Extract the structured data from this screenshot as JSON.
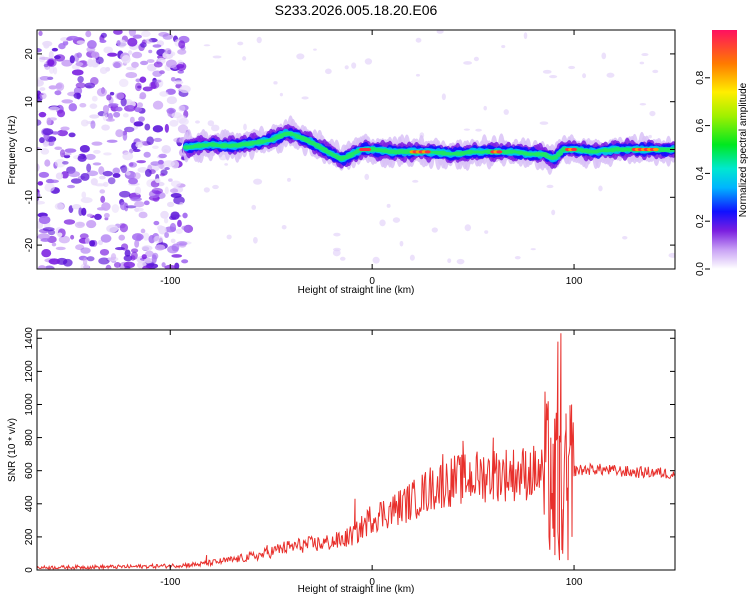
{
  "title": "S233.2026.005.18.20.E06",
  "colors": {
    "snr_line": "#e8302c",
    "axis": "#000000",
    "dots": "#7b1fe0"
  },
  "chart_data": [
    {
      "type": "heatmap",
      "name": "spectrogram",
      "xlabel": "Height of straight line (km)",
      "ylabel": "Frequency (Hz)",
      "xlim": [
        -166,
        150
      ],
      "ylim": [
        -25,
        25
      ],
      "xticks": [
        -100,
        0,
        100
      ],
      "xtick_labels": [
        "-100",
        "0",
        "100"
      ],
      "yticks": [
        -20,
        -10,
        0,
        10,
        20
      ],
      "ytick_labels": [
        "-20",
        "-10",
        "0",
        "10",
        "20"
      ],
      "noise_region_x": [
        -166,
        -95
      ],
      "signal_start_x": -92,
      "ridge": {
        "x": [
          -92,
          -80,
          -70,
          -60,
          -50,
          -42,
          -35,
          -28,
          -20,
          -15,
          -10,
          -5,
          0,
          10,
          20,
          30,
          40,
          50,
          60,
          70,
          78,
          85,
          90,
          95,
          100,
          110,
          120,
          130,
          140,
          150
        ],
        "y": [
          0.5,
          1.0,
          0.8,
          1.2,
          2.0,
          3.5,
          2.5,
          1.0,
          -1.0,
          -2.0,
          -1.0,
          0.0,
          0.0,
          -0.5,
          -0.5,
          -0.5,
          -1.0,
          -0.5,
          -0.5,
          -0.5,
          -1.0,
          -1.0,
          -2.0,
          0.0,
          0.0,
          -0.5,
          0.0,
          0.0,
          0.0,
          0.0
        ]
      },
      "colorbar": {
        "label": "Normalized spectral amplitude",
        "ticks": [
          0.0,
          0.2,
          0.4,
          0.6,
          0.8
        ],
        "tick_labels": [
          "0.0",
          "0.2",
          "0.4",
          "0.6",
          "0.8"
        ],
        "range": [
          0,
          1
        ]
      }
    },
    {
      "type": "line",
      "name": "snr",
      "xlabel": "Height of straight line (km)",
      "ylabel": "SNR (10 * v/v)",
      "xlim": [
        -166,
        150
      ],
      "ylim": [
        0,
        1450
      ],
      "xticks": [
        -100,
        0,
        100
      ],
      "xtick_labels": [
        "-100",
        "0",
        "100"
      ],
      "yticks": [
        0,
        200,
        400,
        600,
        800,
        1000,
        1200,
        1400
      ],
      "ytick_labels": [
        "0",
        "200",
        "400",
        "600",
        "800",
        "1000",
        "1200",
        "1400"
      ],
      "trend": {
        "x": [
          -166,
          -120,
          -100,
          -85,
          -70,
          -55,
          -45,
          -35,
          -25,
          -15,
          -8,
          0,
          10,
          20,
          30,
          40,
          50,
          60,
          70,
          80,
          85,
          88,
          90,
          92,
          94,
          96,
          98,
          100,
          110,
          120,
          130,
          140,
          150
        ],
        "y": [
          15,
          20,
          25,
          35,
          60,
          90,
          130,
          150,
          160,
          180,
          220,
          320,
          360,
          420,
          500,
          540,
          560,
          580,
          580,
          590,
          580,
          550,
          500,
          480,
          450,
          500,
          560,
          600,
          610,
          600,
          590,
          590,
          580
        ]
      },
      "spikes": [
        {
          "x": 92.0,
          "y": 1380
        },
        {
          "x": 92.8,
          "y": 60
        },
        {
          "x": 93.5,
          "y": 1430
        },
        {
          "x": 94.0,
          "y": 120
        },
        {
          "x": 90.5,
          "y": 90
        },
        {
          "x": 91.2,
          "y": 950
        },
        {
          "x": 88.5,
          "y": 800
        },
        {
          "x": 96.0,
          "y": 850
        },
        {
          "x": 97.0,
          "y": 60
        },
        {
          "x": 98.0,
          "y": 750
        },
        {
          "x": 99.0,
          "y": 200
        },
        {
          "x": 89.5,
          "y": 250
        },
        {
          "x": 60.0,
          "y": 800
        },
        {
          "x": 45.0,
          "y": 780
        },
        {
          "x": 35.0,
          "y": 700
        },
        {
          "x": -8.5,
          "y": 430
        },
        {
          "x": -52.0,
          "y": 150
        },
        {
          "x": -82.0,
          "y": 90
        }
      ]
    }
  ]
}
